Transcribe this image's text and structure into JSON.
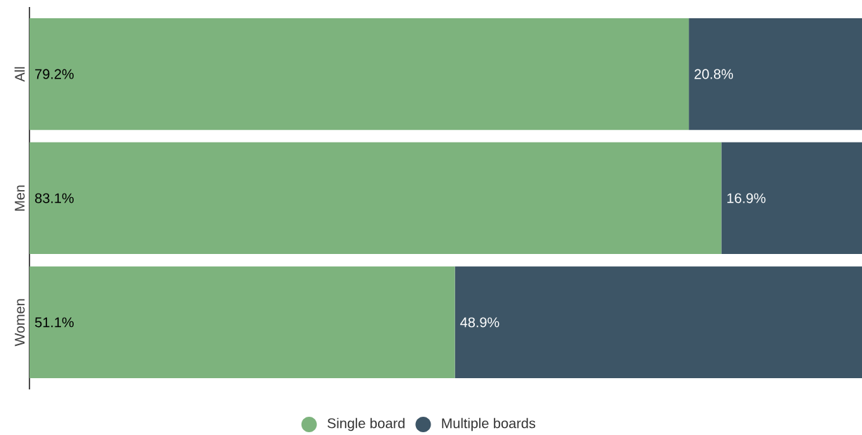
{
  "chart_data": {
    "type": "bar",
    "orientation": "horizontal",
    "stacked": true,
    "categories": [
      "All",
      "Men",
      "Women"
    ],
    "series": [
      {
        "name": "Single board",
        "color": "#7db37d",
        "values": [
          79.2,
          83.1,
          51.1
        ],
        "value_labels": [
          "79.2%",
          "83.1%",
          "51.1%"
        ]
      },
      {
        "name": "Multiple boards",
        "color": "#3d5566",
        "values": [
          20.8,
          16.9,
          48.9
        ],
        "value_labels": [
          "20.8%",
          "16.9%",
          "48.9%"
        ]
      }
    ],
    "legend": "bottom",
    "tick_labels": "y",
    "grid": false
  }
}
